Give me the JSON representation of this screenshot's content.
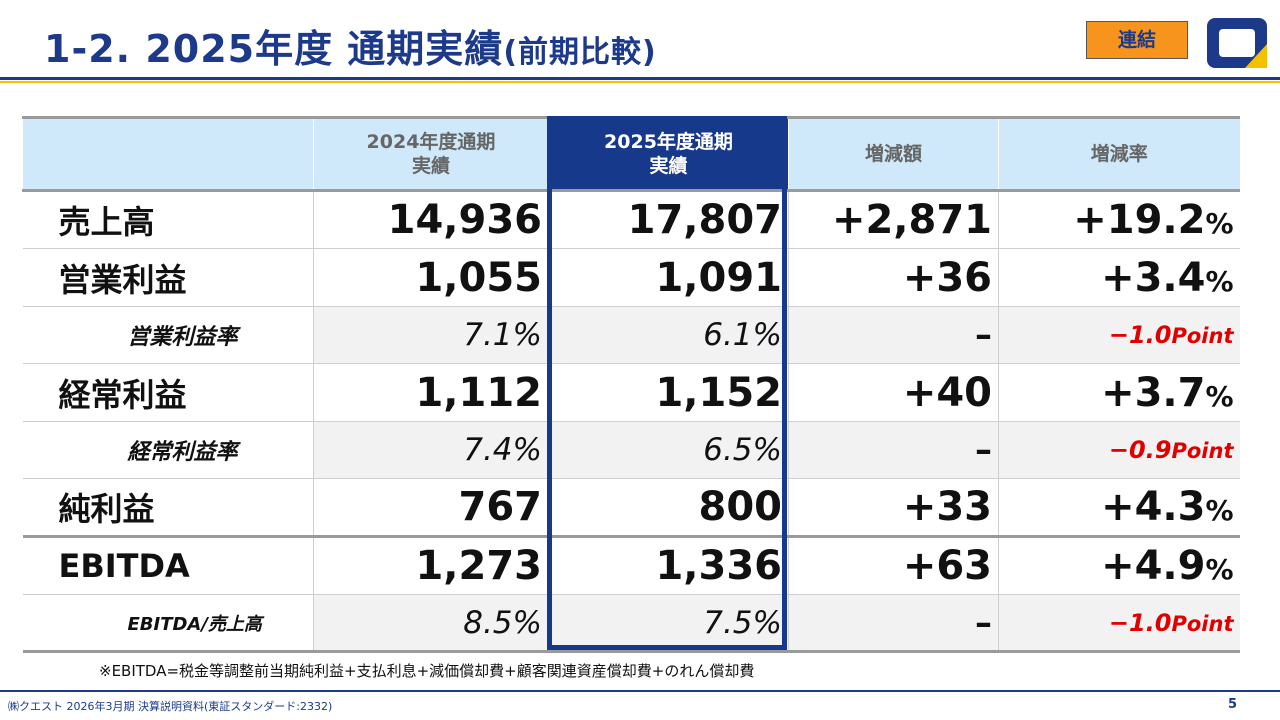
{
  "header": {
    "title": "1-2. 2025年度 通期実績",
    "title_paren": "(前期比較)",
    "badge": "連結",
    "logo_icon": "company-logo-icon"
  },
  "table": {
    "columns": [
      "",
      "2024年度通期\n実績",
      "2025年度通期\n実績",
      "増減額",
      "増減率"
    ],
    "rows": [
      {
        "type": "main",
        "label": "売上高",
        "prev": "14,936",
        "curr": "17,807",
        "diff": "+2,871",
        "rate": "+19.2",
        "rate_unit": "%"
      },
      {
        "type": "main",
        "label": "営業利益",
        "prev": "1,055",
        "curr": "1,091",
        "diff": "+36",
        "rate": "+3.4",
        "rate_unit": "%"
      },
      {
        "type": "sub",
        "label": "営業利益率",
        "prev": "7.1%",
        "curr": "6.1%",
        "diff": "–",
        "rate": "−1.0",
        "rate_unit": "Point"
      },
      {
        "type": "main",
        "label": "経常利益",
        "prev": "1,112",
        "curr": "1,152",
        "diff": "+40",
        "rate": "+3.7",
        "rate_unit": "%"
      },
      {
        "type": "sub",
        "label": "経常利益率",
        "prev": "7.4%",
        "curr": "6.5%",
        "diff": "–",
        "rate": "−0.9",
        "rate_unit": "Point"
      },
      {
        "type": "main",
        "label": "純利益",
        "prev": "767",
        "curr": "800",
        "diff": "+33",
        "rate": "+4.3",
        "rate_unit": "%"
      },
      {
        "type": "main",
        "label": "EBITDA",
        "prev": "1,273",
        "curr": "1,336",
        "diff": "+63",
        "rate": "+4.9",
        "rate_unit": "%"
      },
      {
        "type": "sub",
        "label": "EBITDA/売上高",
        "prev": "8.5%",
        "curr": "7.5%",
        "diff": "–",
        "rate": "−1.0",
        "rate_unit": "Point"
      }
    ]
  },
  "note": "※EBITDA=税金等調整前当期純利益+支払利息+減価償却費+顧客関連資産償却費+のれん償却費",
  "footer": {
    "text": "㈱クエスト 2026年3月期 決算説明資料(東証スタンダード:2332)",
    "page": "5"
  },
  "colors": {
    "brand_blue": "#1d3a8a",
    "header_bg": "#cfe9fa",
    "highlight_column": "#16398c",
    "badge_orange": "#f7941d",
    "accent_yellow": "#f2c200",
    "negative_red": "#e00000"
  }
}
